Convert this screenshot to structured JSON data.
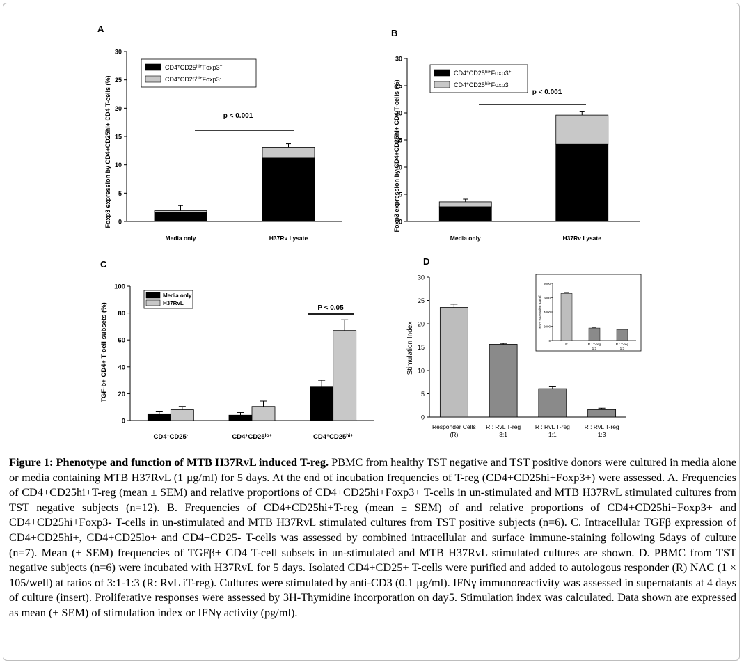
{
  "chart_data": [
    {
      "panel": "A",
      "type": "bar",
      "stacked": true,
      "categories": [
        "Media only",
        "H37Rv Lysate"
      ],
      "series": [
        {
          "name": "CD4+CD25hi+Foxp3+",
          "values": [
            1.6,
            11.2
          ],
          "color": "#000000"
        },
        {
          "name": "CD4+CD25hi+Foxp3-",
          "values": [
            0.3,
            1.9
          ],
          "color": "#c8c8c8"
        }
      ],
      "error": [
        0.9,
        0.6
      ],
      "ylim": [
        0,
        30
      ],
      "yticks": [
        "0",
        "5",
        "10",
        "15",
        "20",
        "25",
        "30"
      ],
      "ylabel": "Foxp3 expression by CD4+CD25hi+ CD4 T-cells (%)",
      "annotation": "p < 0.001",
      "legend_position": "top-left"
    },
    {
      "panel": "B",
      "type": "bar",
      "stacked": true,
      "categories": [
        "Media only",
        "H37Rv Lysate"
      ],
      "series": [
        {
          "name": "CD4+CD25hi+Foxp3+",
          "values": [
            2.7,
            14.2
          ],
          "color": "#000000"
        },
        {
          "name": "CD4+CD25hi+Foxp3-",
          "values": [
            0.9,
            5.4
          ],
          "color": "#c8c8c8"
        }
      ],
      "error": [
        0.5,
        0.6
      ],
      "ylim": [
        0,
        30
      ],
      "yticks": [
        "0",
        "5",
        "10",
        "15",
        "20",
        "25",
        "30"
      ],
      "ylabel": "Foxp3 expression by CD4+CD25hi+ CD4 T-cells (%)",
      "annotation": "p < 0.001",
      "legend_position": "top-left"
    },
    {
      "panel": "C",
      "type": "bar",
      "categories": [
        "CD4+CD25-",
        "CD4+CD25lo+",
        "CD4+CD25hi+"
      ],
      "series": [
        {
          "name": "Media only",
          "values": [
            5,
            4,
            25
          ],
          "errors": [
            2,
            2,
            5
          ],
          "color": "#000000"
        },
        {
          "name": "H37RvL",
          "values": [
            8,
            10.5,
            67
          ],
          "errors": [
            2.5,
            4,
            8
          ],
          "color": "#c8c8c8"
        }
      ],
      "ylim": [
        0,
        100
      ],
      "yticks": [
        "0",
        "20",
        "40",
        "60",
        "80",
        "100"
      ],
      "ylabel": "TGF-b+ CD4+ T-cell subsets (%)",
      "annotation": "P < 0.05",
      "legend_position": "top-left"
    },
    {
      "panel": "D",
      "type": "bar",
      "categories": [
        "Responder Cells (R)",
        "R : RvL T-reg 3:1",
        "R : RvL T-reg 1:1",
        "R : RvL T-reg 1:3"
      ],
      "values": [
        23.5,
        15.6,
        6.1,
        1.6
      ],
      "errors": [
        0.7,
        0.2,
        0.4,
        0.3
      ],
      "colors": [
        "#bdbdbd",
        "#8a8a8a",
        "#8a8a8a",
        "#8a8a8a"
      ],
      "ylim": [
        0,
        30
      ],
      "yticks": [
        "0",
        "5",
        "10",
        "15",
        "20",
        "25",
        "30"
      ],
      "ylabel": "Stimulation Index",
      "inset": {
        "categories": [
          "R",
          "R : T-reg 1:1",
          "R : T-reg 1:3"
        ],
        "values": [
          6600,
          1750,
          1550
        ],
        "ylim": [
          0,
          8000
        ],
        "yticks": [
          "0",
          "2000",
          "4000",
          "6000",
          "8000"
        ],
        "ylabel": "IFN-γ expression (pg/ml)"
      }
    }
  ],
  "panel_labels": [
    "A",
    "B",
    "C",
    "D"
  ],
  "caption": {
    "title": "Figure 1: Phenotype and function of MTB H37RvL induced T-reg.",
    "body": "PBMC from healthy TST negative and TST positive donors were cultured in media alone or media containing MTB H37RvL (1 µg/ml) for 5 days. At the end of incubation frequencies of T-reg (CD4+CD25hi+Foxp3+) were assessed. A. Frequencies of CD4+CD25hi+T-reg (mean ± SEM) and relative proportions of CD4+CD25hi+Foxp3+ T-cells in un-stimulated and MTB H37RvL stimulated cultures from TST negative subjects (n=12). B. Frequencies of CD4+CD25hi+T-reg (mean ± SEM) of and relative proportions of CD4+CD25hi+Foxp3+ and CD4+CD25hi+Foxp3- T-cells in un-stimulated and MTB H37RvL stimulated cultures from TST positive subjects (n=6). C. Intracellular TGFβ expression of CD4+CD25hi+, CD4+CD25lo+ and CD4+CD25- T-cells was assessed by combined intracellular and surface immune-staining following 5days of culture (n=7). Mean (± SEM) frequencies of TGFβ+ CD4 T-cell subsets in un-stimulated and MTB H37RvL stimulated cultures are shown. D. PBMC from TST negative subjects (n=6) were incubated with H37RvL for 5 days. Isolated CD4+CD25+ T-cells were purified and added to autologous responder (R) NAC (1 × 105/well) at ratios of 3:1-1:3 (R: RvL iT-reg). Cultures were stimulated by anti-CD3 (0.1 µg/ml). IFNγ immunoreactivity was assessed in supernatants at 4 days of culture (insert). Proliferative responses were assessed by 3H-Thymidine incorporation on day5. Stimulation index was calculated. Data shown are expressed as mean (± SEM) of stimulation index or IFNγ activity (pg/ml)."
  }
}
